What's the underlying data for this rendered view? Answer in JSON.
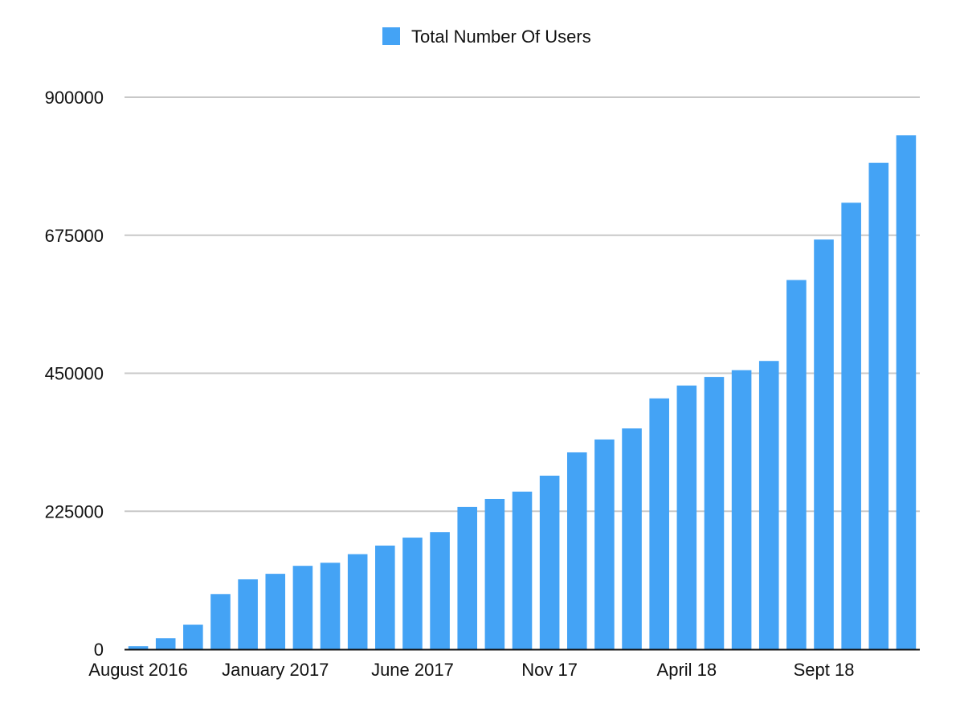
{
  "chart_data": {
    "type": "bar",
    "legend": {
      "position": "top-center",
      "entries": [
        {
          "label": "Total Number Of Users",
          "color": "#44a3f5"
        }
      ]
    },
    "series": [
      {
        "name": "Total Number Of Users",
        "color": "#44a3f5",
        "values": [
          5000,
          18000,
          40000,
          90000,
          114000,
          123000,
          136000,
          141000,
          155000,
          169000,
          182000,
          191000,
          232000,
          245000,
          257000,
          283000,
          321000,
          342000,
          360000,
          409000,
          430000,
          444000,
          455000,
          470000,
          602000,
          668000,
          728000,
          793000,
          838000
        ]
      }
    ],
    "categories": [
      "August 2016",
      "",
      "",
      "",
      "",
      "January 2017",
      "",
      "",
      "",
      "",
      "June 2017",
      "",
      "",
      "",
      "",
      "Nov 17",
      "",
      "",
      "",
      "",
      "April 18",
      "",
      "",
      "",
      "",
      "Sept 18",
      "",
      "",
      ""
    ],
    "ylim": [
      0,
      900000
    ],
    "y_ticks": [
      "0",
      "225000",
      "450000",
      "675000",
      "900000"
    ],
    "grid": {
      "horizontal": true,
      "color": "#c8c8c8"
    },
    "axis_color": "#111111"
  }
}
